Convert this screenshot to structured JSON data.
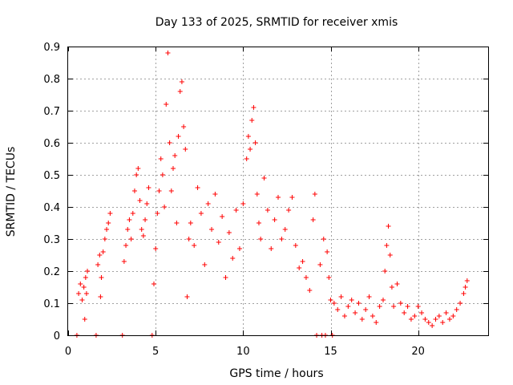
{
  "chart_data": {
    "type": "scatter",
    "title": "Day 133 of 2025, SRMTID for receiver xmis",
    "xlabel": "GPS time / hours",
    "ylabel": "SRMTID / TECUs",
    "xlim": [
      0,
      24
    ],
    "ylim": [
      0,
      0.9
    ],
    "xticks": [
      0,
      5,
      10,
      15,
      20
    ],
    "yticks": [
      0,
      0.1,
      0.2,
      0.3,
      0.4,
      0.5,
      0.6,
      0.7,
      0.8,
      0.9
    ],
    "xtick_labels": [
      "0",
      "5",
      "10",
      "15",
      "20"
    ],
    "ytick_labels": [
      "0",
      "0.1",
      "0.2",
      "0.3",
      "0.4",
      "0.5",
      "0.6",
      "0.7",
      "0.8",
      "0.9"
    ],
    "grid": true,
    "marker": "+",
    "color": "#ff0000",
    "series": [
      {
        "name": "SRMTID",
        "points": [
          [
            0.5,
            0
          ],
          [
            0.6,
            0.13
          ],
          [
            0.7,
            0.16
          ],
          [
            0.8,
            0.11
          ],
          [
            0.9,
            0.15
          ],
          [
            0.95,
            0.05
          ],
          [
            1.0,
            0.18
          ],
          [
            1.05,
            0.13
          ],
          [
            1.1,
            0.2
          ],
          [
            1.6,
            0
          ],
          [
            1.7,
            0.22
          ],
          [
            1.8,
            0.25
          ],
          [
            1.85,
            0.12
          ],
          [
            1.9,
            0.18
          ],
          [
            2.0,
            0.26
          ],
          [
            2.1,
            0.3
          ],
          [
            2.2,
            0.33
          ],
          [
            2.3,
            0.35
          ],
          [
            2.4,
            0.38
          ],
          [
            3.1,
            0
          ],
          [
            3.2,
            0.23
          ],
          [
            3.3,
            0.28
          ],
          [
            3.4,
            0.33
          ],
          [
            3.5,
            0.36
          ],
          [
            3.6,
            0.3
          ],
          [
            3.7,
            0.38
          ],
          [
            3.8,
            0.45
          ],
          [
            3.9,
            0.5
          ],
          [
            4.0,
            0.52
          ],
          [
            4.1,
            0.42
          ],
          [
            4.2,
            0.33
          ],
          [
            4.3,
            0.31
          ],
          [
            4.4,
            0.36
          ],
          [
            4.5,
            0.41
          ],
          [
            4.6,
            0.46
          ],
          [
            4.8,
            0
          ],
          [
            4.9,
            0.16
          ],
          [
            5.0,
            0.27
          ],
          [
            5.1,
            0.38
          ],
          [
            5.2,
            0.45
          ],
          [
            5.3,
            0.55
          ],
          [
            5.4,
            0.5
          ],
          [
            5.5,
            0.4
          ],
          [
            5.6,
            0.72
          ],
          [
            5.7,
            0.88
          ],
          [
            5.8,
            0.6
          ],
          [
            5.9,
            0.45
          ],
          [
            6.0,
            0.52
          ],
          [
            6.1,
            0.56
          ],
          [
            6.2,
            0.35
          ],
          [
            6.3,
            0.62
          ],
          [
            6.4,
            0.76
          ],
          [
            6.5,
            0.79
          ],
          [
            6.6,
            0.65
          ],
          [
            6.7,
            0.58
          ],
          [
            6.8,
            0.12
          ],
          [
            6.9,
            0.3
          ],
          [
            7.0,
            0.35
          ],
          [
            7.2,
            0.28
          ],
          [
            7.4,
            0.46
          ],
          [
            7.6,
            0.38
          ],
          [
            7.8,
            0.22
          ],
          [
            8.0,
            0.41
          ],
          [
            8.2,
            0.33
          ],
          [
            8.4,
            0.44
          ],
          [
            8.6,
            0.29
          ],
          [
            8.8,
            0.37
          ],
          [
            9.0,
            0.18
          ],
          [
            9.2,
            0.32
          ],
          [
            9.4,
            0.24
          ],
          [
            9.6,
            0.39
          ],
          [
            9.8,
            0.27
          ],
          [
            10.0,
            0.41
          ],
          [
            10.2,
            0.55
          ],
          [
            10.3,
            0.62
          ],
          [
            10.4,
            0.58
          ],
          [
            10.5,
            0.67
          ],
          [
            10.6,
            0.71
          ],
          [
            10.7,
            0.6
          ],
          [
            10.8,
            0.44
          ],
          [
            10.9,
            0.35
          ],
          [
            11.0,
            0.3
          ],
          [
            11.2,
            0.49
          ],
          [
            11.4,
            0.39
          ],
          [
            11.6,
            0.27
          ],
          [
            11.8,
            0.36
          ],
          [
            12.0,
            0.43
          ],
          [
            12.2,
            0.3
          ],
          [
            12.4,
            0.33
          ],
          [
            12.6,
            0.39
          ],
          [
            12.8,
            0.43
          ],
          [
            13.0,
            0.28
          ],
          [
            13.2,
            0.21
          ],
          [
            13.4,
            0.23
          ],
          [
            13.6,
            0.18
          ],
          [
            13.8,
            0.14
          ],
          [
            14.0,
            0.36
          ],
          [
            14.1,
            0.44
          ],
          [
            14.2,
            0
          ],
          [
            14.4,
            0.22
          ],
          [
            14.5,
            0
          ],
          [
            14.6,
            0.3
          ],
          [
            14.7,
            0
          ],
          [
            14.8,
            0.26
          ],
          [
            14.9,
            0.18
          ],
          [
            15.0,
            0.11
          ],
          [
            15.1,
            0
          ],
          [
            15.2,
            0.1
          ],
          [
            15.4,
            0.08
          ],
          [
            15.6,
            0.12
          ],
          [
            15.8,
            0.06
          ],
          [
            16.0,
            0.09
          ],
          [
            16.2,
            0.11
          ],
          [
            16.4,
            0.07
          ],
          [
            16.6,
            0.1
          ],
          [
            16.8,
            0.05
          ],
          [
            17.0,
            0.08
          ],
          [
            17.2,
            0.12
          ],
          [
            17.4,
            0.06
          ],
          [
            17.6,
            0.04
          ],
          [
            17.8,
            0.09
          ],
          [
            18.0,
            0.11
          ],
          [
            18.1,
            0.2
          ],
          [
            18.2,
            0.28
          ],
          [
            18.3,
            0.34
          ],
          [
            18.4,
            0.25
          ],
          [
            18.5,
            0.15
          ],
          [
            18.6,
            0.09
          ],
          [
            18.8,
            0.16
          ],
          [
            19.0,
            0.1
          ],
          [
            19.2,
            0.07
          ],
          [
            19.4,
            0.09
          ],
          [
            19.6,
            0.05
          ],
          [
            19.8,
            0.06
          ],
          [
            20.0,
            0.09
          ],
          [
            20.2,
            0.07
          ],
          [
            20.4,
            0.05
          ],
          [
            20.6,
            0.04
          ],
          [
            20.8,
            0.03
          ],
          [
            21.0,
            0.05
          ],
          [
            21.2,
            0.06
          ],
          [
            21.4,
            0.04
          ],
          [
            21.6,
            0.07
          ],
          [
            21.8,
            0.05
          ],
          [
            22.0,
            0.06
          ],
          [
            22.2,
            0.08
          ],
          [
            22.4,
            0.1
          ],
          [
            22.6,
            0.13
          ],
          [
            22.7,
            0.15
          ],
          [
            22.8,
            0.17
          ]
        ]
      }
    ]
  }
}
